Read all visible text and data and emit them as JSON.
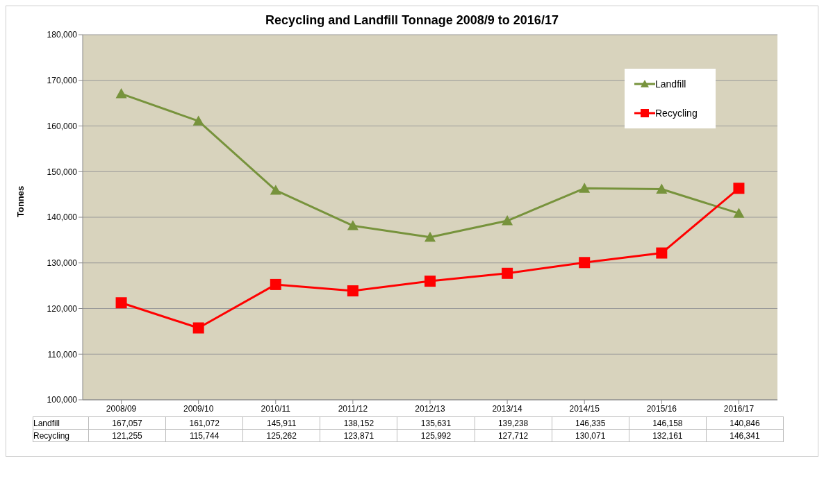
{
  "chart_data": {
    "type": "line",
    "title": "Recycling and Landfill Tonnage 2008/9 to 2016/17",
    "ylabel": "Tonnes",
    "categories": [
      "2008/09",
      "2009/10",
      "2010/11",
      "2011/12",
      "2012/13",
      "2013/14",
      "2014/15",
      "2015/16",
      "2016/17"
    ],
    "series": [
      {
        "name": "Landfill",
        "color": "#77933c",
        "marker": "triangle",
        "values": [
          167057,
          161072,
          145911,
          138152,
          135631,
          139238,
          146335,
          146158,
          140846
        ],
        "value_labels": [
          "167,057",
          "161,072",
          "145,911",
          "138,152",
          "135,631",
          "139,238",
          "146,335",
          "146,158",
          "140,846"
        ]
      },
      {
        "name": "Recycling",
        "color": "#ff0000",
        "marker": "square",
        "values": [
          121255,
          115744,
          125262,
          123871,
          125992,
          127712,
          130071,
          132161,
          146341
        ],
        "value_labels": [
          "121,255",
          "115,744",
          "125,262",
          "123,871",
          "125,992",
          "127,712",
          "130,071",
          "132,161",
          "146,341"
        ]
      }
    ],
    "ylim": [
      100000,
      180000
    ],
    "yticks": [
      {
        "value": 100000,
        "label": "100,000"
      },
      {
        "value": 110000,
        "label": "110,000"
      },
      {
        "value": 120000,
        "label": "120,000"
      },
      {
        "value": 130000,
        "label": "130,000"
      },
      {
        "value": 140000,
        "label": "140,000"
      },
      {
        "value": 150000,
        "label": "150,000"
      },
      {
        "value": 160000,
        "label": "160,000"
      },
      {
        "value": 170000,
        "label": "170,000"
      },
      {
        "value": 180000,
        "label": "180,000"
      }
    ],
    "grid": "y",
    "legend": "top right"
  }
}
